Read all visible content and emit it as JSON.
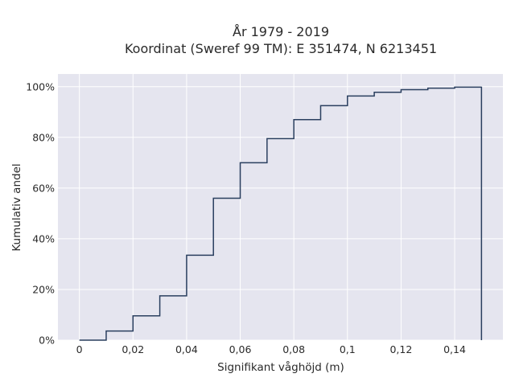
{
  "chart_data": {
    "type": "line",
    "subtype": "cumulative-step",
    "title_lines": [
      "År 1979 - 2019",
      "Koordinat (Sweref 99 TM): E 351474, N 6213451"
    ],
    "xlabel": "Signifikant våghöjd (m)",
    "ylabel": "Kumulativ andel",
    "xlim": [
      -0.008,
      0.158
    ],
    "ylim": [
      0,
      1.05
    ],
    "x_ticks": [
      0,
      0.02,
      0.04,
      0.06,
      0.08,
      0.1,
      0.12,
      0.14
    ],
    "x_tick_labels": [
      "0",
      "0,02",
      "0,04",
      "0,06",
      "0,08",
      "0,1",
      "0,12",
      "0,14"
    ],
    "y_ticks": [
      0,
      0.2,
      0.4,
      0.6,
      0.8,
      1.0
    ],
    "y_tick_labels": [
      "0%",
      "20%",
      "40%",
      "60%",
      "80%",
      "100%"
    ],
    "grid": true,
    "legend": "none",
    "colors": {
      "background": "#e5e5ef",
      "grid": "#ffffff",
      "line": "#2a3f5f"
    },
    "series": [
      {
        "x": [
          0,
          0.01,
          0.02,
          0.03,
          0.04,
          0.05,
          0.06,
          0.07,
          0.08,
          0.09,
          0.1,
          0.11,
          0.12,
          0.13,
          0.14,
          0.15
        ],
        "y": [
          0,
          0.036,
          0.096,
          0.175,
          0.335,
          0.56,
          0.7,
          0.795,
          0.87,
          0.925,
          0.963,
          0.978,
          0.988,
          0.994,
          0.998,
          1.0
        ]
      }
    ],
    "final_drop_to_zero": true
  }
}
